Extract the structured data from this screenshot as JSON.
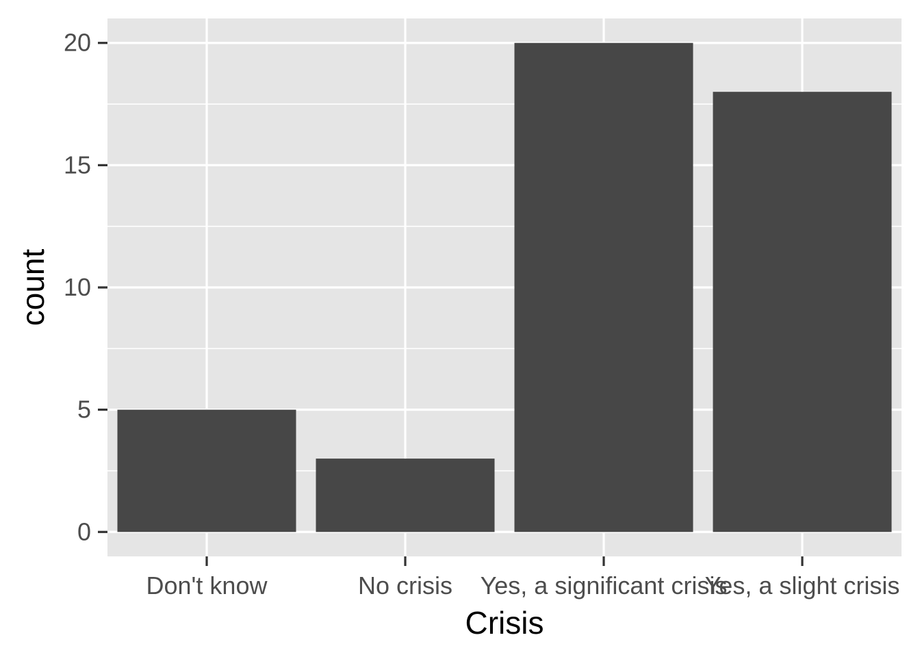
{
  "chart_data": {
    "type": "bar",
    "title": "",
    "xlabel": "Crisis",
    "ylabel": "count",
    "categories": [
      "Don't know",
      "No crisis",
      "Yes, a significant crisis",
      "Yes, a slight crisis"
    ],
    "values": [
      5,
      3,
      20,
      18
    ],
    "ylim": [
      -1,
      21
    ],
    "y_ticks": [
      0,
      5,
      10,
      15,
      20
    ],
    "grid": true,
    "legend": "none",
    "colors": {
      "bar": "#474747",
      "panel": "#e5e5e5",
      "grid": "#ffffff",
      "tick_mark": "#333333",
      "tick_text": "#4d4d4d",
      "title_text": "#000000"
    }
  }
}
